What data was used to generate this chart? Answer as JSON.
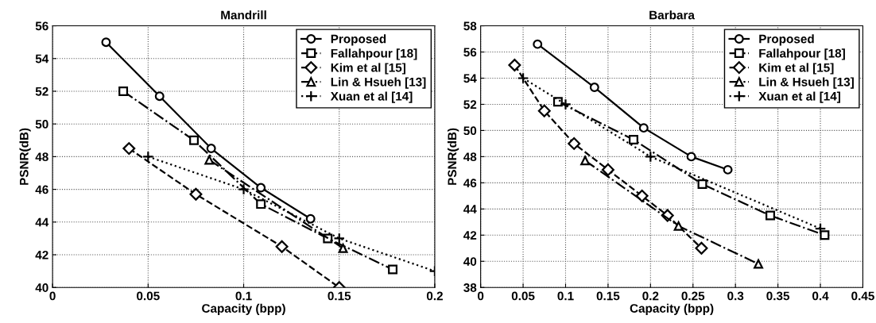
{
  "chart_data": [
    {
      "type": "line",
      "title": "Mandrill",
      "xlabel": "Capacity (bpp)",
      "ylabel": "PSNR(dB)",
      "xlim": [
        0,
        0.2
      ],
      "xticks": [
        0,
        0.05,
        0.1,
        0.15,
        0.2
      ],
      "ylim": [
        40,
        56
      ],
      "yticks": [
        40,
        42,
        44,
        46,
        48,
        50,
        52,
        54,
        56
      ],
      "grid": true,
      "legend": "top right",
      "series": [
        {
          "name": "Proposed",
          "color": "#000000",
          "marker": "circle",
          "line_style": "solid",
          "x": [
            0.028,
            0.056,
            0.083,
            0.109,
            0.135
          ],
          "values": [
            55,
            51.7,
            48.5,
            46.1,
            44.2
          ]
        },
        {
          "name": "Fallahpour [18]",
          "color": "#000000",
          "marker": "square",
          "line_style": "dashdot",
          "x": [
            0.037,
            0.074,
            0.109,
            0.144,
            0.178
          ],
          "values": [
            52,
            49,
            45.1,
            43,
            41.1
          ]
        },
        {
          "name": "Kim et al [15]",
          "color": "#000000",
          "marker": "diamond",
          "line_style": "dashed",
          "x": [
            0.04,
            0.075,
            0.12,
            0.15
          ],
          "values": [
            48.5,
            45.7,
            42.5,
            40
          ]
        },
        {
          "name": "Lin & Hsueh [13]",
          "color": "#000000",
          "marker": "triangle",
          "line_style": "dashdot",
          "x": [
            0.082,
            0.152
          ],
          "values": [
            47.8,
            42.4
          ]
        },
        {
          "name": "Xuan et al [14]",
          "color": "#000000",
          "marker": "cross",
          "line_style": "dotted",
          "x": [
            0.05,
            0.1,
            0.15,
            0.2
          ],
          "values": [
            48,
            46,
            43,
            41
          ]
        }
      ]
    },
    {
      "type": "line",
      "title": "Barbara",
      "xlabel": "Capacity (bpp)",
      "ylabel": "PSNR(dB)",
      "xlim": [
        0,
        0.45
      ],
      "xticks": [
        0,
        0.05,
        0.1,
        0.15,
        0.2,
        0.25,
        0.3,
        0.35,
        0.4,
        0.45
      ],
      "ylim": [
        38,
        58
      ],
      "yticks": [
        38,
        40,
        42,
        44,
        46,
        48,
        50,
        52,
        54,
        56,
        58
      ],
      "grid": true,
      "legend": "top right",
      "series": [
        {
          "name": "Proposed",
          "color": "#000000",
          "marker": "circle",
          "line_style": "solid",
          "x": [
            0.067,
            0.134,
            0.192,
            0.248,
            0.291
          ],
          "values": [
            56.6,
            53.3,
            50.2,
            48,
            47
          ]
        },
        {
          "name": "Fallahpour [18]",
          "color": "#000000",
          "marker": "square",
          "line_style": "dashdot",
          "x": [
            0.091,
            0.18,
            0.261,
            0.341,
            0.405
          ],
          "values": [
            52.2,
            49.3,
            45.9,
            43.5,
            42
          ]
        },
        {
          "name": "Kim et al [15]",
          "color": "#000000",
          "marker": "diamond",
          "line_style": "dashed",
          "x": [
            0.04,
            0.075,
            0.11,
            0.15,
            0.19,
            0.22,
            0.26
          ],
          "values": [
            55,
            51.5,
            49,
            47,
            45,
            43.5,
            41
          ]
        },
        {
          "name": "Lin & Hsueh [13]",
          "color": "#000000",
          "marker": "triangle",
          "line_style": "dashdot",
          "x": [
            0.123,
            0.233,
            0.327
          ],
          "values": [
            47.7,
            42.7,
            39.8
          ]
        },
        {
          "name": "Xuan et al [14]",
          "color": "#000000",
          "marker": "cross",
          "line_style": "dotted",
          "x": [
            0.05,
            0.1,
            0.2,
            0.4
          ],
          "values": [
            54,
            52,
            48,
            42.5
          ]
        }
      ]
    }
  ]
}
